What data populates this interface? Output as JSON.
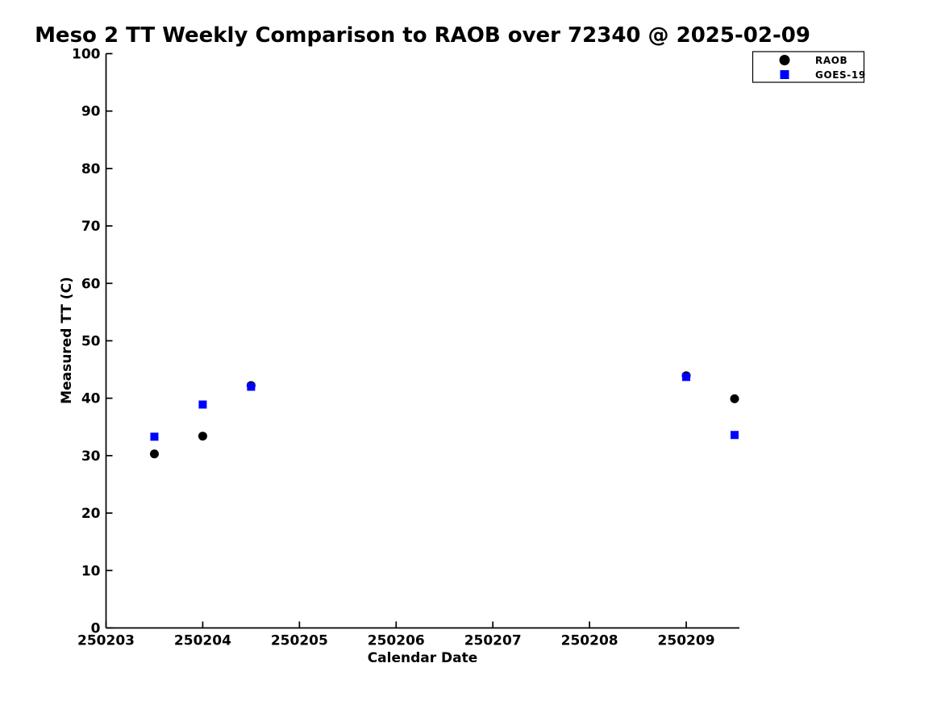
{
  "figure": {
    "background": "#ffffff",
    "text_color": "#000000",
    "axis_color": "#000000"
  },
  "chart_data": {
    "type": "scatter",
    "title": "Meso 2 TT Weekly Comparison to RAOB over 72340 @ 2025-02-09",
    "xlabel": "Calendar Date",
    "ylabel": "Measured TT (C)",
    "xlim": [
      250203,
      250209.55
    ],
    "ylim": [
      0,
      100
    ],
    "xticks": [
      250203,
      250204,
      250205,
      250206,
      250207,
      250208,
      250209
    ],
    "yticks": [
      0,
      10,
      20,
      30,
      40,
      50,
      60,
      70,
      80,
      90,
      100
    ],
    "grid": false,
    "legend": {
      "position": "upper-right",
      "border_color": "#000000",
      "background": "#ffffff"
    },
    "series": [
      {
        "name": "RAOB",
        "marker": "circle",
        "color": "#000000",
        "points": [
          [
            250203.5,
            30.3
          ],
          [
            250204.0,
            33.4
          ],
          [
            250204.5,
            42.2
          ],
          [
            250209.0,
            43.9
          ],
          [
            250209.5,
            39.9
          ]
        ]
      },
      {
        "name": "GOES-19",
        "marker": "square",
        "color": "#0000ff",
        "points": [
          [
            250203.5,
            33.3
          ],
          [
            250204.0,
            38.9
          ],
          [
            250204.5,
            42.0
          ],
          [
            250209.0,
            43.7
          ],
          [
            250209.5,
            33.6
          ]
        ]
      }
    ]
  }
}
